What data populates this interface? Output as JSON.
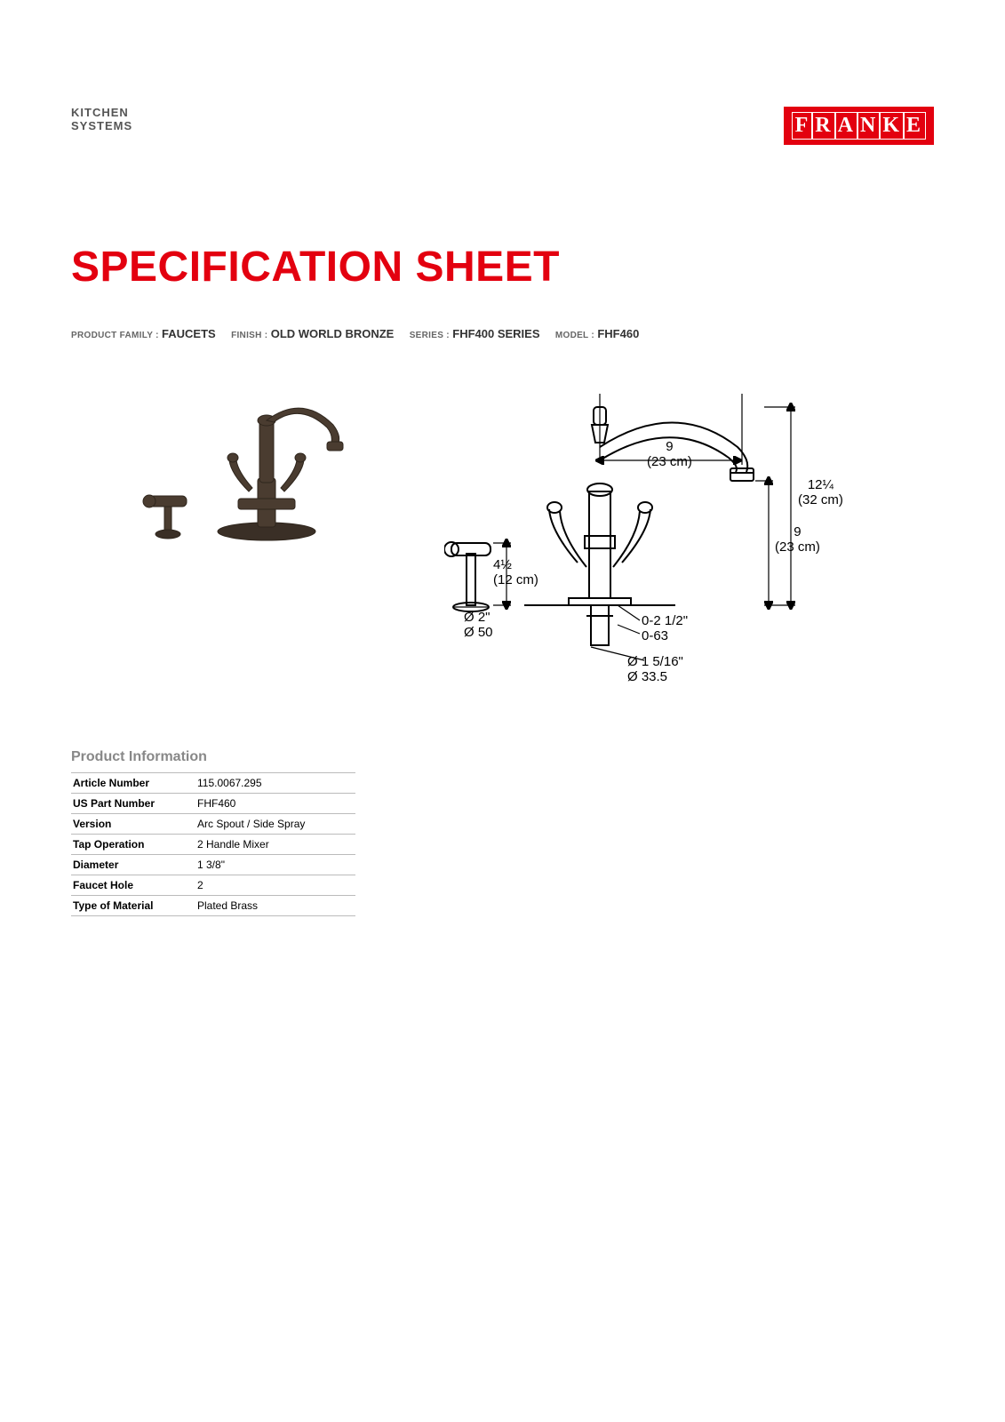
{
  "header": {
    "company_label_line1": "KITCHEN",
    "company_label_line2": "SYSTEMS",
    "logo_text": "FRANKE",
    "logo_bg": "#e3000f",
    "logo_fg": "#ffffff"
  },
  "title": "SPECIFICATION SHEET",
  "title_color": "#e3000f",
  "meta": {
    "product_family_label": "PRODUCT FAMILY :",
    "product_family": "FAUCETS",
    "finish_label": "FINISH :",
    "finish": "OLD WORLD BRONZE",
    "series_label": "SERIES :",
    "series": "FHF400 SERIES",
    "model_label": "MODEL :",
    "model": "FHF460"
  },
  "product_photo": {
    "body_color": "#5b4a3c",
    "shadow_color": "#3a2f26"
  },
  "drawing": {
    "line_color": "#000000",
    "dims": {
      "spout_reach": "9\n(23 cm)",
      "overall_height": "12¼\n(32 cm)",
      "spout_height": "9\n(23 cm)",
      "sprayer_height": "4½\n(12 cm)",
      "sprayer_hole_dia": "Ø 2\"\nØ 50",
      "deck_range": "0-2 1/2\"\n0-63",
      "shank_dia": "Ø 1 5/16\"\nØ 33.5"
    }
  },
  "info_section_title": "Product Information",
  "info_table": {
    "columns": [
      "key",
      "value"
    ],
    "rows": [
      [
        "Article Number",
        "115.0067.295"
      ],
      [
        "US Part Number",
        "FHF460"
      ],
      [
        "Version",
        "Arc Spout / Side Spray"
      ],
      [
        "Tap Operation",
        "2 Handle Mixer"
      ],
      [
        "Diameter",
        "1 3/8\""
      ],
      [
        "Faucet Hole",
        "2"
      ],
      [
        "Type of Material",
        "Plated Brass"
      ]
    ],
    "border_color": "#bbbbbb",
    "key_font_weight": "bold",
    "font_size_pt": 9
  }
}
